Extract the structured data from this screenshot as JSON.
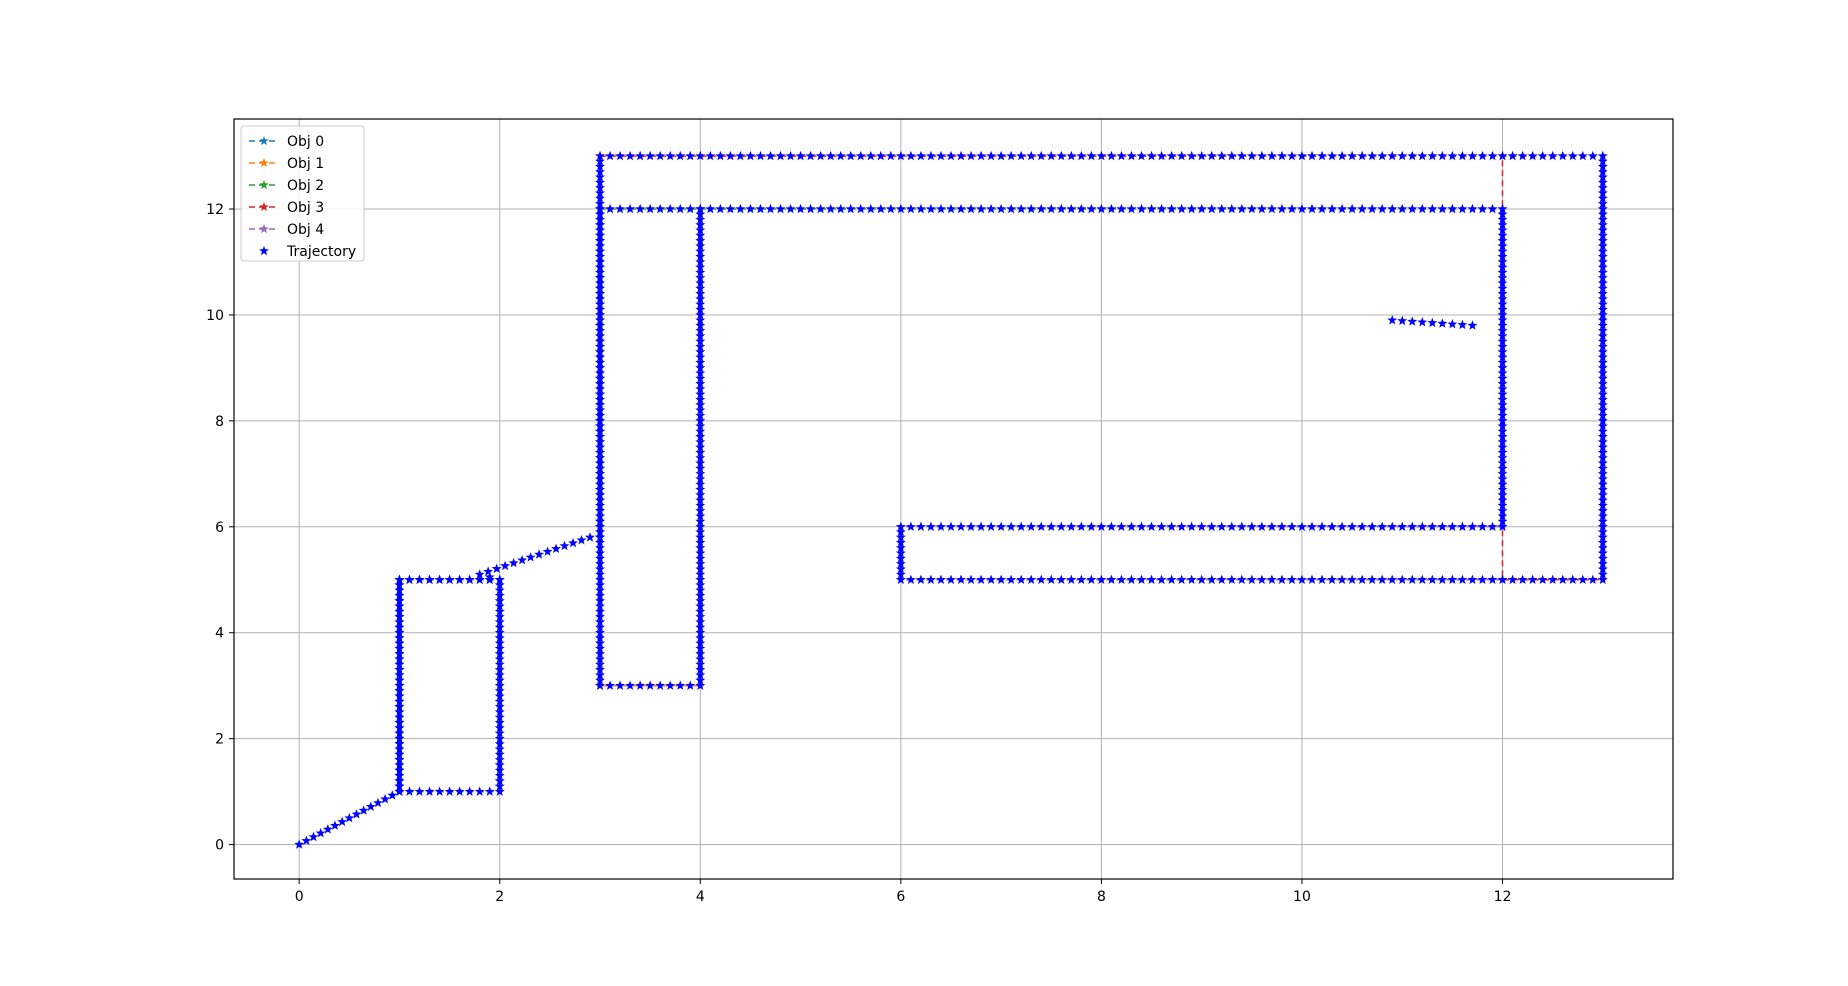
{
  "chart_data": {
    "type": "line",
    "title": "",
    "xlabel": "",
    "ylabel": "",
    "xlim": [
      -0.65,
      13.7
    ],
    "ylim": [
      -0.65,
      13.7
    ],
    "xticks": [
      0,
      2,
      4,
      6,
      8,
      10,
      12
    ],
    "yticks": [
      0,
      2,
      4,
      6,
      8,
      10,
      12
    ],
    "grid": true,
    "legend": {
      "position": "top-left",
      "entries": [
        "Obj 0",
        "Obj 1",
        "Obj 2",
        "Obj 3",
        "Obj 4",
        "Trajectory"
      ]
    },
    "colors": {
      "obj0": "#1f77b4",
      "obj1": "#ff7f0e",
      "obj2": "#2ca02c",
      "obj3": "#d62728",
      "obj4": "#9467bd",
      "trajectory": "#0000ff",
      "grid": "#b0b0b0"
    },
    "series": [
      {
        "name": "Obj 0",
        "style": "dashed-star",
        "x": [
          1,
          1,
          2,
          2,
          1
        ],
        "y": [
          1,
          5,
          5,
          1,
          1
        ]
      },
      {
        "name": "Obj 1",
        "style": "dashed-star",
        "x": [
          3,
          3,
          4,
          4
        ],
        "y": [
          12,
          3,
          3,
          12
        ]
      },
      {
        "name": "Obj 2",
        "style": "dashed-star",
        "x": [
          3,
          4,
          12
        ],
        "y": [
          12,
          12,
          12
        ]
      },
      {
        "name": "Obj 3",
        "style": "dashed-star",
        "x": [
          3,
          3,
          13,
          13,
          12,
          12
        ],
        "y": [
          3,
          13,
          13,
          5,
          5,
          13
        ]
      },
      {
        "name": "Obj 4",
        "style": "dashed-star",
        "x": [
          12,
          6,
          6,
          12
        ],
        "y": [
          6,
          6,
          5,
          5
        ]
      },
      {
        "name": "Trajectory",
        "style": "star-markers",
        "waypoints": [
          [
            0,
            0
          ],
          [
            1,
            1
          ],
          [
            1,
            5
          ],
          [
            2,
            5
          ],
          [
            2,
            1
          ],
          [
            1,
            1
          ],
          [
            1,
            5
          ],
          [
            2,
            5
          ],
          [
            1.8,
            5.1
          ],
          [
            2.9,
            5.8
          ],
          [
            3,
            5.8
          ],
          [
            3,
            13
          ],
          [
            13,
            13
          ],
          [
            13,
            5
          ],
          [
            6,
            5
          ],
          [
            6,
            6
          ],
          [
            12,
            6
          ],
          [
            12,
            12
          ],
          [
            4,
            12
          ],
          [
            4,
            3
          ],
          [
            3,
            3
          ],
          [
            3,
            12
          ],
          [
            4,
            12
          ]
        ],
        "tail": [
          [
            10.9,
            9.9
          ],
          [
            11.7,
            9.8
          ]
        ]
      }
    ]
  }
}
